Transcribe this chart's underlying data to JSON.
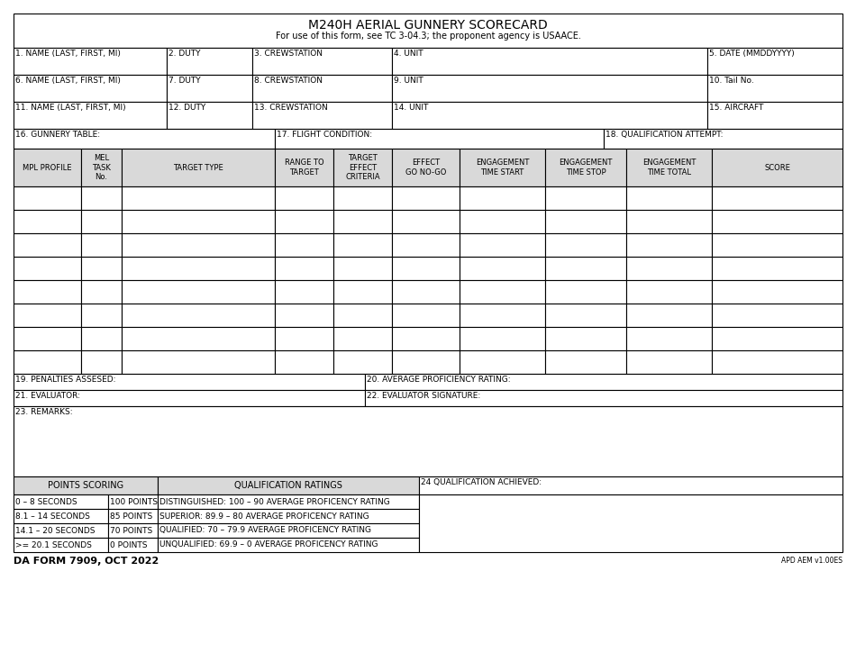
{
  "title": "M240H AERIAL GUNNERY SCORECARD",
  "subtitle": "For use of this form, see TC 3-04.3; the proponent agency is USAACE.",
  "form_number": "DA FORM 7909, OCT 2022",
  "apd": "APD AEM v1.00ES",
  "bg_color": "#ffffff",
  "header_bg": "#d9d9d9",
  "border_color": "#000000",
  "row1_labels": [
    "1. NAME (LAST, FIRST, MI)",
    "2. DUTY",
    "3. CREWSTATION",
    "4. UNIT",
    "5. DATE (MMDDYYYY)"
  ],
  "row2_labels": [
    "6. NAME (LAST, FIRST, MI)",
    "7. DUTY",
    "8. CREWSTATION",
    "9. UNIT",
    "10. Tail No."
  ],
  "row3_labels": [
    "11. NAME (LAST, FIRST, MI)",
    "12. DUTY",
    "13. CREWSTATION",
    "14. UNIT",
    "15. AIRCRAFT"
  ],
  "row4_labels": [
    "16. GUNNERY TABLE:",
    "17. FLIGHT CONDITION:",
    "18. QUALIFICATION ATTEMPT:"
  ],
  "table_headers": [
    "MPL PROFILE",
    "MEL\nTASK\nNo.",
    "TARGET TYPE",
    "RANGE TO\nTARGET",
    "TARGET\nEFFECT\nCRITERIA",
    "EFFECT\nGO NO-GO",
    "ENGAGEMENT\nTIME START",
    "ENGAGEMENT\nTIME STOP",
    "ENGAGEMENT\nTIME TOTAL",
    "SCORE"
  ],
  "table_col_widths": [
    75,
    45,
    170,
    65,
    65,
    75,
    95,
    90,
    95,
    145
  ],
  "num_data_rows": 8,
  "row19_label": "19. PENALTIES ASSESED:",
  "row20_label": "20. AVERAGE PROFICIENCY RATING:",
  "row21_label": "21. EVALUATOR:",
  "row22_label": "22. EVALUATOR SIGNATURE:",
  "row23_label": "23. REMARKS:",
  "points_scoring_header": "POINTS SCORING",
  "qual_ratings_header": "QUALIFICATION RATINGS",
  "qual_achieved_header": "24 QUALIFICATION ACHIEVED:",
  "points_rows": [
    [
      "0 – 8 SECONDS",
      "100 POINTS"
    ],
    [
      "8.1 – 14 SECONDS",
      "85 POINTS"
    ],
    [
      "14.1 – 20 SECONDS",
      "70 POINTS"
    ],
    [
      ">= 20.1 SECONDS",
      "0 POINTS"
    ]
  ],
  "qual_rows": [
    "DISTINGUISHED: 100 – 90 AVERAGE PROFICENCY RATING",
    "SUPERIOR: 89.9 – 80 AVERAGE PROFICENCY RATING",
    "QUALIFIED: 70 – 79.9 AVERAGE PROFICENCY RATING",
    "UNQUALIFIED: 69.9 – 0 AVERAGE PROFICENCY RATING"
  ],
  "font_size_title": 10,
  "font_size_subtitle": 7,
  "font_size_label": 6.5,
  "font_size_header": 6,
  "font_size_bottom": 7,
  "font_size_footer": 8
}
